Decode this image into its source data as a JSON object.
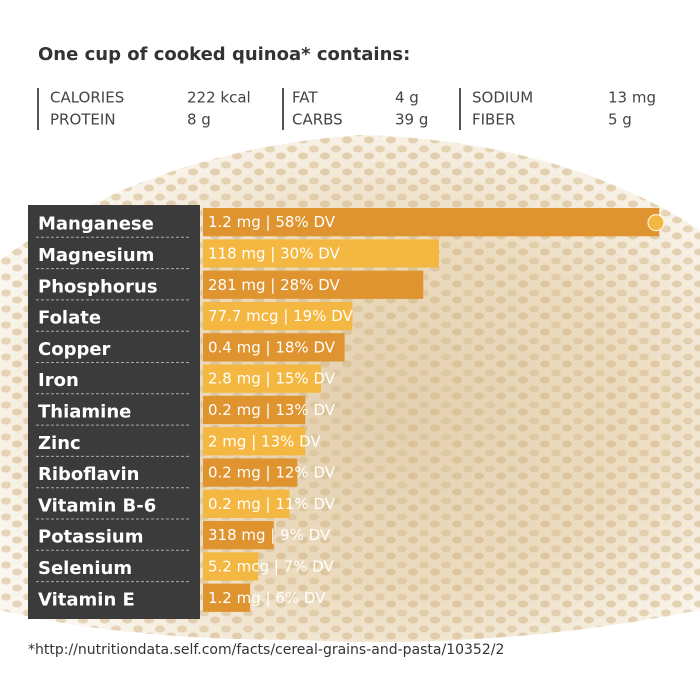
{
  "chart_data": {
    "type": "hbar",
    "title": "One cup of cooked quinoa* contains:",
    "facts": [
      {
        "label": "CALORIES",
        "value": "222 kcal"
      },
      {
        "label": "PROTEIN",
        "value": "8 g"
      },
      {
        "label": "FAT",
        "value": "4 g"
      },
      {
        "label": "CARBS",
        "value": "39 g"
      },
      {
        "label": "SODIUM",
        "value": "13 mg"
      },
      {
        "label": "FIBER",
        "value": "5 g"
      }
    ],
    "categories": [
      "Manganese",
      "Magnesium",
      "Phosphorus",
      "Folate",
      "Copper",
      "Iron",
      "Thiamine",
      "Zinc",
      "Riboflavin",
      "Vitamin B-6",
      "Potassium",
      "Selenium",
      "Vitamin E"
    ],
    "values": [
      58,
      30,
      28,
      19,
      18,
      15,
      13,
      13,
      12,
      11,
      9,
      7,
      6
    ],
    "value_labels": [
      "1.2 mg | 58% DV",
      "118 mg | 30% DV",
      "281 mg | 28% DV",
      "77.7 mcg | 19% DV",
      "0.4 mg | 18% DV",
      "2.8 mg | 15% DV",
      "0.2 mg | 13% DV",
      "2 mg | 13% DV",
      "0.2 mg | 12% DV",
      "0.2 mg | 11% DV",
      "318 mg | 9% DV",
      "5.2 mcg | 7% DV",
      "1.2 mg | 6% DV"
    ],
    "colors": [
      "#df942f",
      "#f4b842"
    ],
    "xlim": [
      0,
      60
    ],
    "source": "*http://nutritiondata.self.com/facts/cereal-grains-and-pasta/10352/2"
  }
}
